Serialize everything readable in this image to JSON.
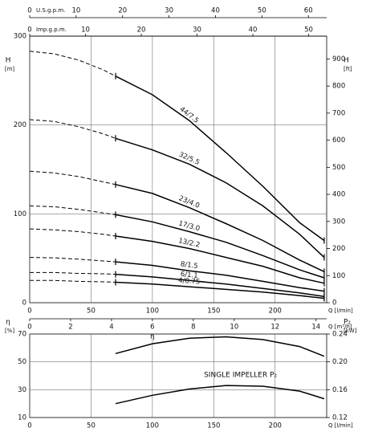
{
  "chart_data": [
    {
      "type": "line",
      "color": "#000000",
      "grid": true,
      "xlabel": "Q [l/min]",
      "ylabel": "H",
      "yunit": "[m]",
      "y2label": "H",
      "y2unit": "[ft]",
      "xlim": [
        0,
        242
      ],
      "xticks": [
        0,
        50,
        100,
        150,
        200
      ],
      "ylim": [
        0,
        300
      ],
      "yticks": [
        0,
        100,
        200,
        300
      ],
      "y2lim": [
        0,
        984.25
      ],
      "y2ticks": [
        0,
        100,
        200,
        300,
        400,
        500,
        600,
        700,
        800,
        900
      ],
      "extra_x_axes": [
        {
          "label": "U.S.g.p.m.",
          "position": "top",
          "xlim": [
            0,
            63.94
          ],
          "xticks": [
            0,
            10,
            20,
            30,
            40,
            50,
            60
          ]
        },
        {
          "label": "Imp.g.p.m.",
          "position": "top",
          "xlim": [
            0,
            53.23
          ],
          "xticks": [
            0,
            10,
            20,
            30,
            40,
            50
          ]
        },
        {
          "label": "Q [m³/h]",
          "position": "bottom",
          "xlim": [
            0,
            14.52
          ],
          "xticks": [
            0,
            2,
            4,
            6,
            8,
            10,
            12,
            14
          ]
        }
      ],
      "dashed_x": [
        0,
        20,
        40,
        60,
        70
      ],
      "x": [
        70,
        100,
        130,
        160,
        190,
        220,
        240
      ],
      "series": [
        {
          "name": "44/7.5",
          "dashed_values": [
            283,
            280,
            273,
            262,
            255
          ],
          "values": [
            255,
            234,
            205,
            169,
            131,
            90,
            70
          ]
        },
        {
          "name": "32/5.5",
          "dashed_values": [
            206,
            204,
            198,
            190,
            185
          ],
          "values": [
            185,
            172,
            156,
            135,
            109,
            77,
            51
          ]
        },
        {
          "name": "23/4.0",
          "dashed_values": [
            148,
            146,
            142,
            136,
            133
          ],
          "values": [
            133,
            123,
            107,
            89,
            70,
            48,
            35
          ]
        },
        {
          "name": "17/3.0",
          "dashed_values": [
            109,
            108,
            105,
            101,
            99
          ],
          "values": [
            99,
            91,
            80,
            68,
            53,
            37,
            28
          ]
        },
        {
          "name": "13/2.2",
          "dashed_values": [
            83,
            82,
            80,
            77,
            75
          ],
          "values": [
            75,
            69,
            61,
            51,
            41,
            28,
            22
          ]
        },
        {
          "name": "8/1.5",
          "dashed_values": [
            51,
            50.5,
            49,
            47,
            46
          ],
          "values": [
            46,
            42,
            36,
            31,
            24,
            17,
            13
          ]
        },
        {
          "name": "6/1.1",
          "dashed_values": [
            34,
            34,
            33,
            32.5,
            32
          ],
          "values": [
            32,
            29,
            25,
            21,
            16,
            11,
            7
          ]
        },
        {
          "name": "4/0.75",
          "dashed_values": [
            25,
            25,
            24,
            23.5,
            23
          ],
          "values": [
            23,
            21,
            18,
            15,
            12,
            8,
            5
          ]
        }
      ]
    },
    {
      "type": "line",
      "color": "#000000",
      "grid": true,
      "xlabel": "Q [l/min]",
      "ylabel": "η",
      "yunit": "[%]",
      "y2label": "P₂",
      "y2unit": "[kW]",
      "xlim": [
        0,
        242
      ],
      "xticks": [
        0,
        50,
        100,
        150,
        200
      ],
      "ylim": [
        10,
        70
      ],
      "yticks": [
        10,
        30,
        50,
        70
      ],
      "y2lim": [
        0.12,
        0.24
      ],
      "y2ticks": [
        0.12,
        0.16,
        {
          "value": 0.2,
          "label": "0.20"
        },
        0.24
      ],
      "x": [
        70,
        100,
        130,
        160,
        190,
        220,
        240
      ],
      "series": [
        {
          "name": "η",
          "values": [
            56,
            63,
            67,
            68,
            66,
            61,
            54
          ]
        },
        {
          "name": "SINGLE IMPELLER P₂",
          "axis": "y2",
          "values": [
            0.14,
            0.152,
            0.161,
            0.166,
            0.165,
            0.158,
            0.147
          ]
        }
      ]
    }
  ]
}
